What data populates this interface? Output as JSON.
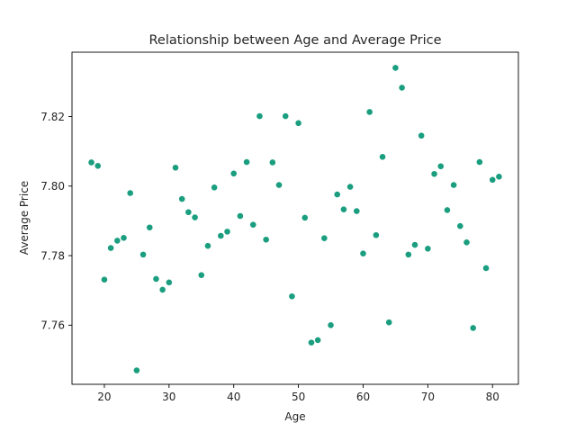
{
  "chart_data": {
    "type": "scatter",
    "title": "Relationship between Age and Average Price",
    "xlabel": "Age",
    "ylabel": "Average Price",
    "xlim": [
      15,
      84
    ],
    "ylim": [
      7.743,
      7.8385
    ],
    "xticks": [
      20,
      30,
      40,
      50,
      60,
      70,
      80
    ],
    "yticks": [
      7.76,
      7.78,
      7.8,
      7.82
    ],
    "ytick_labels": [
      "7.76",
      "7.78",
      "7.80",
      "7.82"
    ],
    "grid": false,
    "marker_color": "#1a9e7f",
    "points": [
      {
        "x": 18,
        "y": 7.8068
      },
      {
        "x": 19,
        "y": 7.8058
      },
      {
        "x": 20,
        "y": 7.7731
      },
      {
        "x": 21,
        "y": 7.7822
      },
      {
        "x": 22,
        "y": 7.7843
      },
      {
        "x": 23,
        "y": 7.7851
      },
      {
        "x": 24,
        "y": 7.798
      },
      {
        "x": 25,
        "y": 7.747
      },
      {
        "x": 26,
        "y": 7.7803
      },
      {
        "x": 27,
        "y": 7.7881
      },
      {
        "x": 28,
        "y": 7.7733
      },
      {
        "x": 29,
        "y": 7.7702
      },
      {
        "x": 30,
        "y": 7.7723
      },
      {
        "x": 31,
        "y": 7.8053
      },
      {
        "x": 32,
        "y": 7.7963
      },
      {
        "x": 33,
        "y": 7.7925
      },
      {
        "x": 34,
        "y": 7.791
      },
      {
        "x": 35,
        "y": 7.7744
      },
      {
        "x": 36,
        "y": 7.7828
      },
      {
        "x": 37,
        "y": 7.7996
      },
      {
        "x": 38,
        "y": 7.7857
      },
      {
        "x": 39,
        "y": 7.7869
      },
      {
        "x": 40,
        "y": 7.8036
      },
      {
        "x": 41,
        "y": 7.7914
      },
      {
        "x": 42,
        "y": 7.8069
      },
      {
        "x": 43,
        "y": 7.7889
      },
      {
        "x": 44,
        "y": 7.8201
      },
      {
        "x": 45,
        "y": 7.7846
      },
      {
        "x": 46,
        "y": 7.8068
      },
      {
        "x": 47,
        "y": 7.8003
      },
      {
        "x": 48,
        "y": 7.8201
      },
      {
        "x": 49,
        "y": 7.7683
      },
      {
        "x": 50,
        "y": 7.8181
      },
      {
        "x": 51,
        "y": 7.7909
      },
      {
        "x": 52,
        "y": 7.755
      },
      {
        "x": 53,
        "y": 7.7557
      },
      {
        "x": 54,
        "y": 7.785
      },
      {
        "x": 55,
        "y": 7.76
      },
      {
        "x": 56,
        "y": 7.7976
      },
      {
        "x": 57,
        "y": 7.7933
      },
      {
        "x": 58,
        "y": 7.7998
      },
      {
        "x": 59,
        "y": 7.7928
      },
      {
        "x": 60,
        "y": 7.7806
      },
      {
        "x": 61,
        "y": 7.8213
      },
      {
        "x": 62,
        "y": 7.7859
      },
      {
        "x": 63,
        "y": 7.8084
      },
      {
        "x": 64,
        "y": 7.7608
      },
      {
        "x": 65,
        "y": 7.834
      },
      {
        "x": 66,
        "y": 7.8283
      },
      {
        "x": 67,
        "y": 7.7803
      },
      {
        "x": 68,
        "y": 7.7831
      },
      {
        "x": 69,
        "y": 7.8145
      },
      {
        "x": 70,
        "y": 7.782
      },
      {
        "x": 71,
        "y": 7.8035
      },
      {
        "x": 72,
        "y": 7.8057
      },
      {
        "x": 73,
        "y": 7.7931
      },
      {
        "x": 74,
        "y": 7.8003
      },
      {
        "x": 75,
        "y": 7.7885
      },
      {
        "x": 76,
        "y": 7.7838
      },
      {
        "x": 77,
        "y": 7.7592
      },
      {
        "x": 78,
        "y": 7.8069
      },
      {
        "x": 79,
        "y": 7.7764
      },
      {
        "x": 80,
        "y": 7.8018
      },
      {
        "x": 81,
        "y": 7.8027
      }
    ]
  }
}
